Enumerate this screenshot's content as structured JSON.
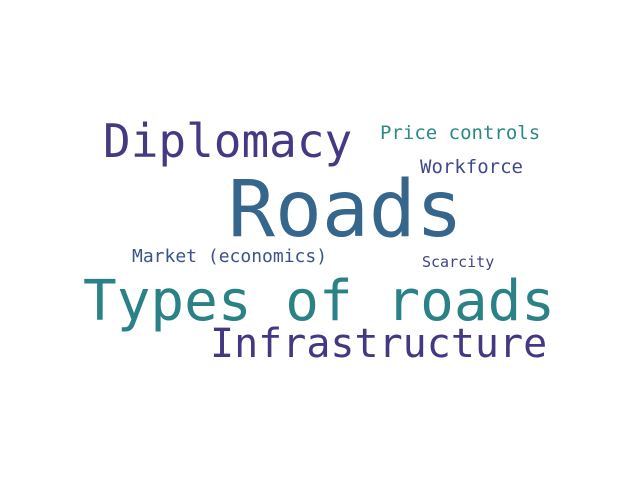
{
  "words": [
    {
      "key": "roads",
      "text": "Roads",
      "color": "#36668c"
    },
    {
      "key": "types",
      "text": "Types of roads",
      "color": "#2a8287"
    },
    {
      "key": "diplomacy",
      "text": "Diplomacy",
      "color": "#443a83"
    },
    {
      "key": "infrastructure",
      "text": "Infrastructure",
      "color": "#453781"
    },
    {
      "key": "price",
      "text": "Price controls",
      "color": "#2a8a86"
    },
    {
      "key": "workforce",
      "text": "Workforce",
      "color": "#3e4a89"
    },
    {
      "key": "market",
      "text": "Market (economics)",
      "color": "#3b528b"
    },
    {
      "key": "scarcity",
      "text": "Scarcity",
      "color": "#414487"
    }
  ]
}
